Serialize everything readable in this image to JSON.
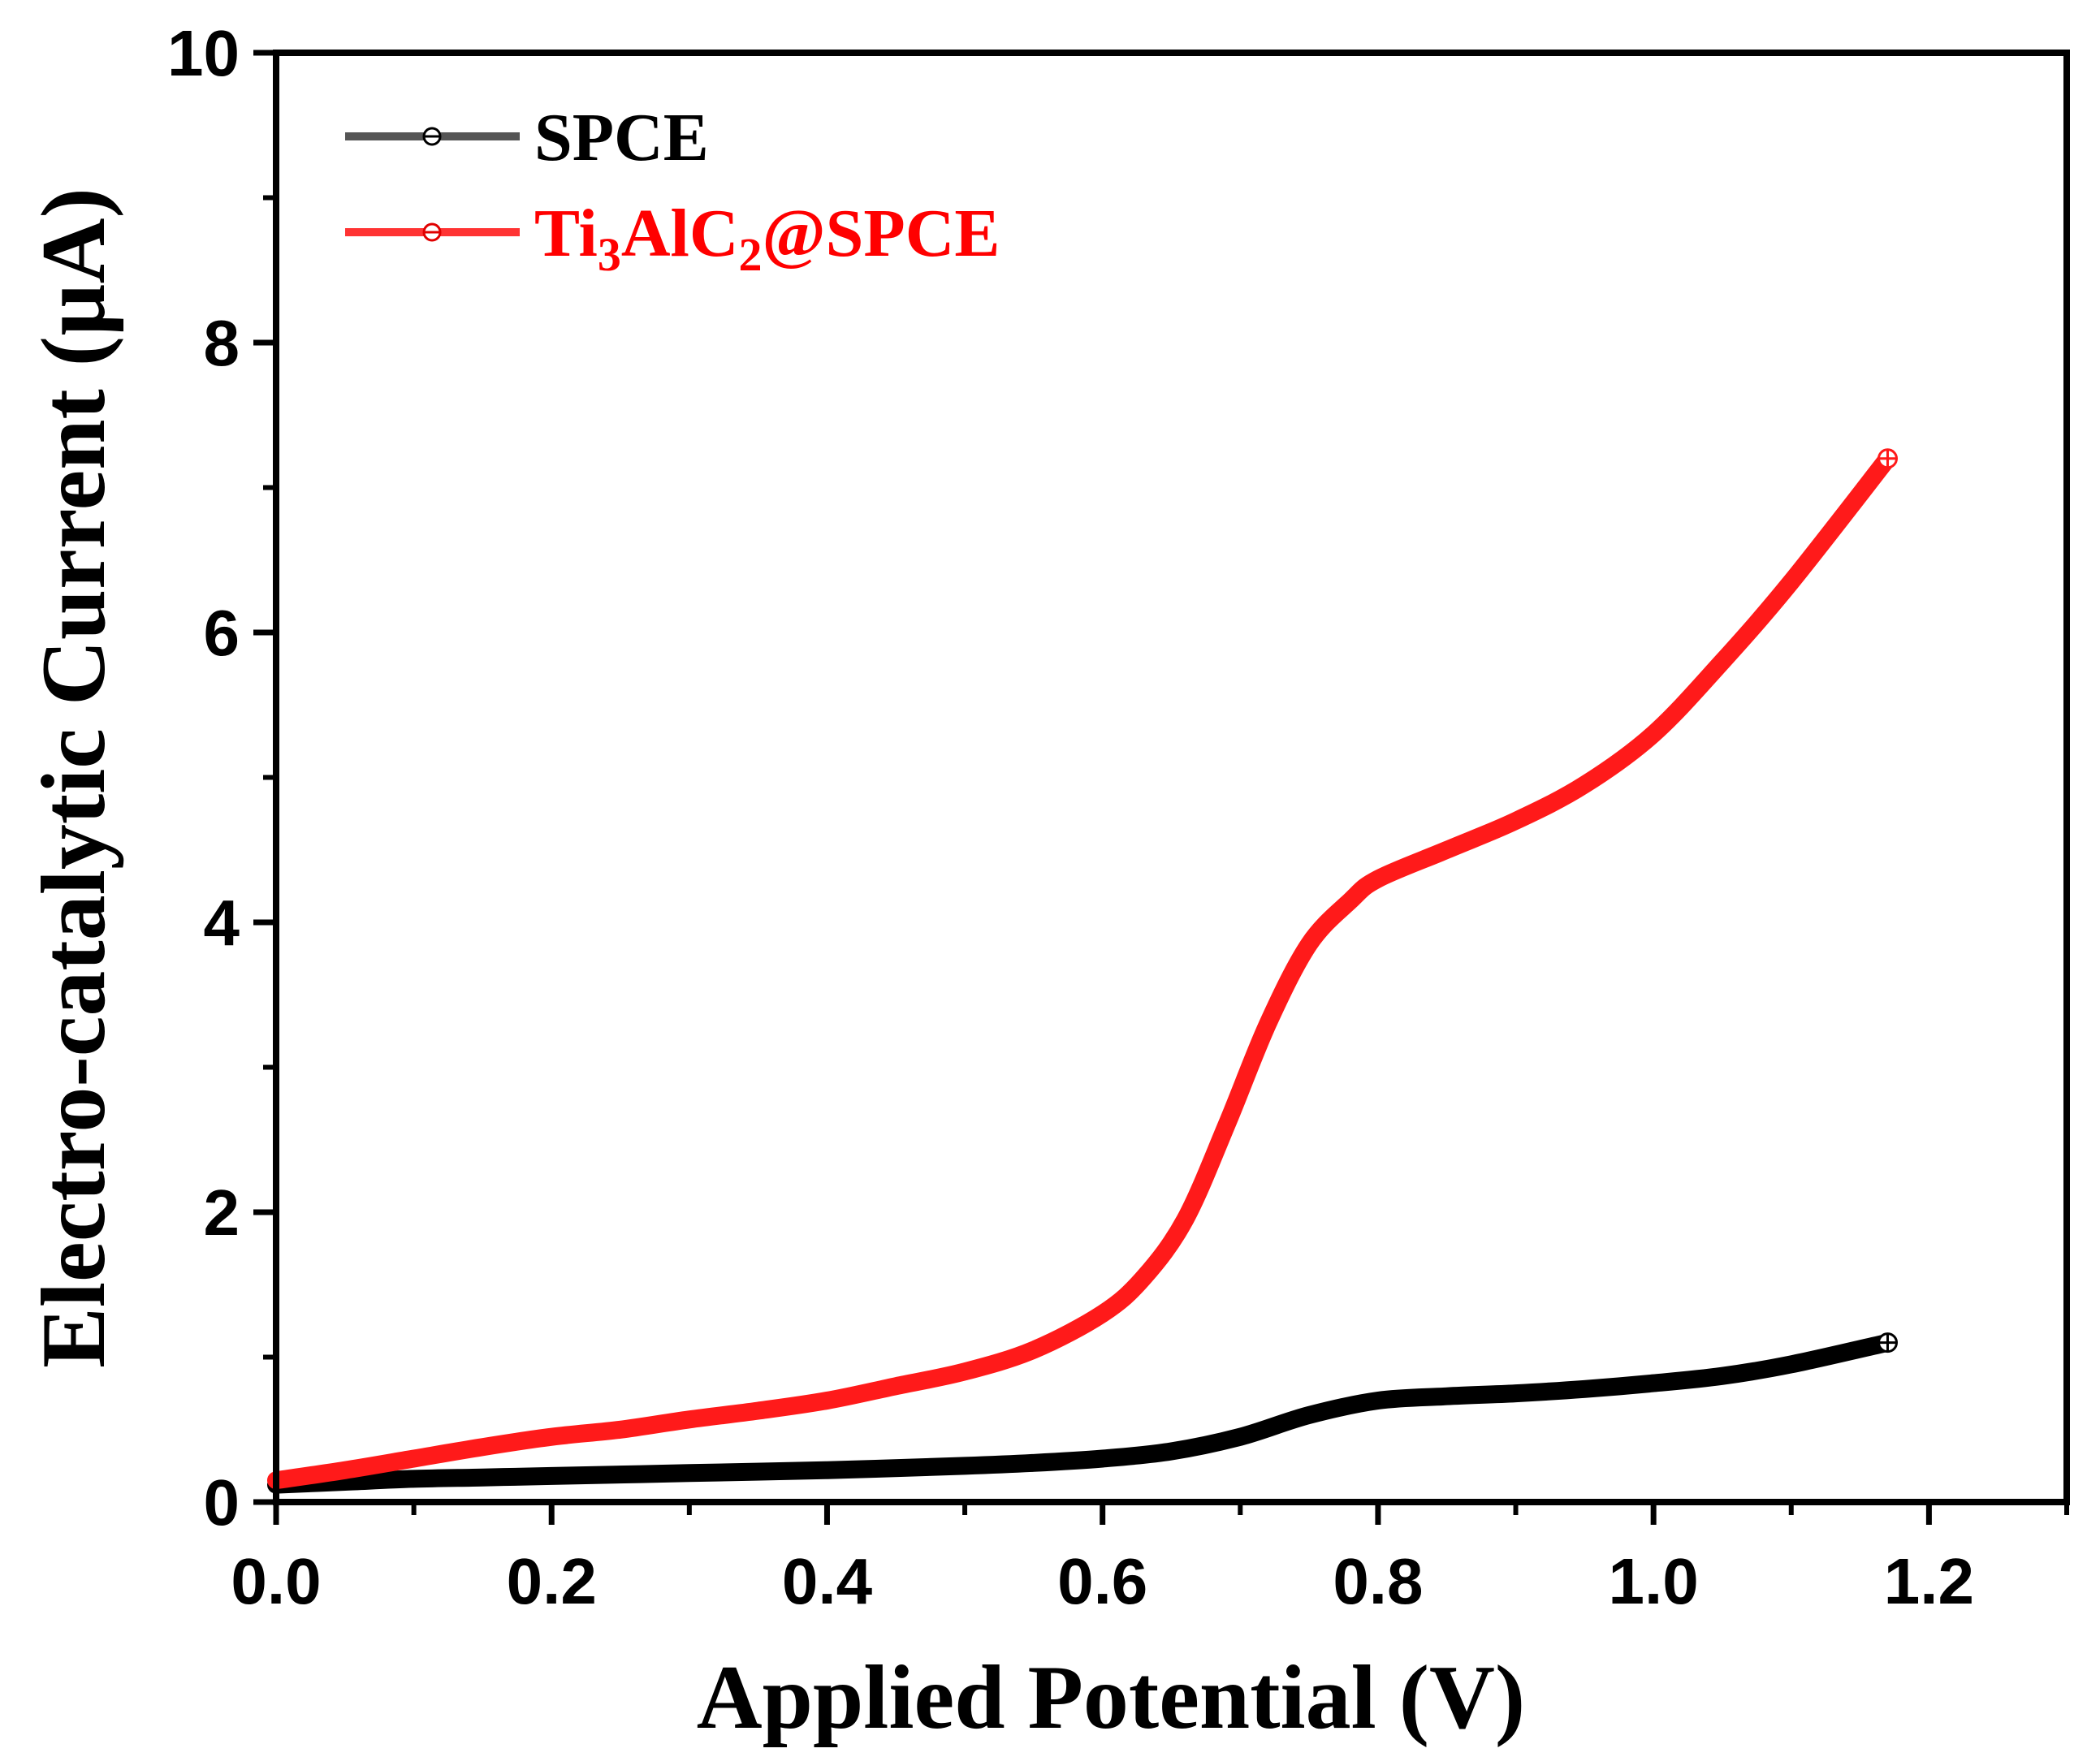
{
  "chart_data": {
    "type": "line",
    "title": "",
    "xlabel": "Applied Potential (V)",
    "ylabel": "Electro-catalytic Current (µA)",
    "xlim": [
      0.0,
      1.3
    ],
    "ylim": [
      0,
      10
    ],
    "xticks": [
      0.0,
      0.2,
      0.4,
      0.6,
      0.8,
      1.0,
      1.2
    ],
    "xtick_labels": [
      "0.0",
      "0.2",
      "0.4",
      "0.6",
      "0.8",
      "1.0",
      "1.2"
    ],
    "yticks": [
      0,
      2,
      4,
      6,
      8,
      10
    ],
    "ytick_labels": [
      "0",
      "2",
      "4",
      "6",
      "8",
      "10"
    ],
    "legend_position": "top-left",
    "series": [
      {
        "name": "SPCE",
        "legend_label": "SPCE",
        "color": "#000000",
        "x": [
          0.0,
          0.05,
          0.1,
          0.15,
          0.2,
          0.3,
          0.4,
          0.5,
          0.55,
          0.6,
          0.65,
          0.7,
          0.75,
          0.8,
          0.85,
          0.9,
          0.95,
          1.0,
          1.05,
          1.1,
          1.17
        ],
        "y": [
          0.12,
          0.14,
          0.16,
          0.17,
          0.18,
          0.2,
          0.22,
          0.25,
          0.27,
          0.3,
          0.35,
          0.45,
          0.6,
          0.7,
          0.73,
          0.75,
          0.78,
          0.82,
          0.87,
          0.95,
          1.1
        ]
      },
      {
        "name": "Ti3AlC2@SPCE",
        "legend_label": {
          "pre": "Ti",
          "sub1": "3",
          "mid": "AlC",
          "sub2": "2",
          "post": "@SPCE"
        },
        "color": "#ff1a1a",
        "x": [
          0.0,
          0.05,
          0.1,
          0.15,
          0.2,
          0.25,
          0.3,
          0.35,
          0.4,
          0.45,
          0.5,
          0.55,
          0.6,
          0.63,
          0.66,
          0.69,
          0.72,
          0.75,
          0.78,
          0.8,
          0.85,
          0.9,
          0.95,
          1.0,
          1.05,
          1.1,
          1.17
        ],
        "y": [
          0.15,
          0.22,
          0.3,
          0.38,
          0.45,
          0.5,
          0.57,
          0.63,
          0.7,
          0.8,
          0.9,
          1.05,
          1.3,
          1.55,
          1.95,
          2.6,
          3.3,
          3.85,
          4.15,
          4.3,
          4.5,
          4.7,
          4.95,
          5.3,
          5.8,
          6.35,
          7.2
        ]
      }
    ]
  }
}
